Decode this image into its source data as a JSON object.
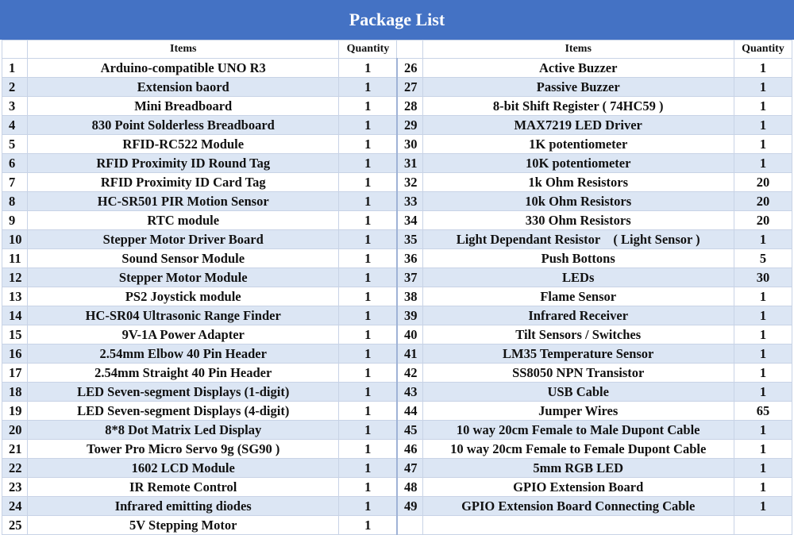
{
  "title": "Package List",
  "headers": {
    "items": "Items",
    "quantity": "Quantity"
  },
  "rows": [
    {
      "left": {
        "no": "1",
        "item": "Arduino-compatible UNO R3",
        "qty": "1"
      },
      "right": {
        "no": "26",
        "item": "Active Buzzer",
        "qty": "1"
      }
    },
    {
      "left": {
        "no": "2",
        "item": "Extension baord",
        "qty": "1"
      },
      "right": {
        "no": "27",
        "item": "Passive Buzzer",
        "qty": "1"
      }
    },
    {
      "left": {
        "no": "3",
        "item": "Mini Breadboard",
        "qty": "1"
      },
      "right": {
        "no": "28",
        "item": "8-bit Shift Register ( 74HC59 )",
        "qty": "1"
      }
    },
    {
      "left": {
        "no": "4",
        "item": "830 Point Solderless Breadboard",
        "qty": "1"
      },
      "right": {
        "no": "29",
        "item": "MAX7219 LED Driver",
        "qty": "1"
      }
    },
    {
      "left": {
        "no": "5",
        "item": "RFID-RC522 Module",
        "qty": "1"
      },
      "right": {
        "no": "30",
        "item": "1K potentiometer",
        "qty": "1"
      }
    },
    {
      "left": {
        "no": "6",
        "item": "RFID Proximity ID Round Tag",
        "qty": "1"
      },
      "right": {
        "no": "31",
        "item": "10K potentiometer",
        "qty": "1"
      }
    },
    {
      "left": {
        "no": "7",
        "item": "RFID Proximity ID Card Tag",
        "qty": "1"
      },
      "right": {
        "no": "32",
        "item": "1k Ohm Resistors",
        "qty": "20"
      }
    },
    {
      "left": {
        "no": "8",
        "item": "HC-SR501 PIR Motion Sensor",
        "qty": "1"
      },
      "right": {
        "no": "33",
        "item": "10k Ohm Resistors",
        "qty": "20"
      }
    },
    {
      "left": {
        "no": "9",
        "item": "RTC module",
        "qty": "1"
      },
      "right": {
        "no": "34",
        "item": "330 Ohm Resistors",
        "qty": "20"
      }
    },
    {
      "left": {
        "no": "10",
        "item": "Stepper Motor Driver Board",
        "qty": "1"
      },
      "right": {
        "no": "35",
        "item": "Light Dependant Resistor　( Light Sensor )",
        "qty": "1"
      }
    },
    {
      "left": {
        "no": "11",
        "item": "Sound Sensor Module",
        "qty": "1"
      },
      "right": {
        "no": "36",
        "item": "Push Bottons",
        "qty": "5"
      }
    },
    {
      "left": {
        "no": "12",
        "item": "Stepper Motor Module",
        "qty": "1"
      },
      "right": {
        "no": "37",
        "item": "LEDs",
        "qty": "30"
      }
    },
    {
      "left": {
        "no": "13",
        "item": "PS2 Joystick module",
        "qty": "1"
      },
      "right": {
        "no": "38",
        "item": "Flame Sensor",
        "qty": "1"
      }
    },
    {
      "left": {
        "no": "14",
        "item": "HC-SR04 Ultrasonic Range Finder",
        "qty": "1"
      },
      "right": {
        "no": "39",
        "item": "Infrared Receiver",
        "qty": "1"
      }
    },
    {
      "left": {
        "no": "15",
        "item": "9V-1A Power Adapter",
        "qty": "1"
      },
      "right": {
        "no": "40",
        "item": "Tilt Sensors / Switches",
        "qty": "1"
      }
    },
    {
      "left": {
        "no": "16",
        "item": "2.54mm Elbow 40 Pin Header",
        "qty": "1"
      },
      "right": {
        "no": "41",
        "item": "LM35 Temperature Sensor",
        "qty": "1"
      }
    },
    {
      "left": {
        "no": "17",
        "item": "2.54mm Straight 40 Pin Header",
        "qty": "1"
      },
      "right": {
        "no": "42",
        "item": "SS8050 NPN Transistor",
        "qty": "1"
      }
    },
    {
      "left": {
        "no": "18",
        "item": "LED Seven-segment Displays (1-digit)",
        "qty": "1"
      },
      "right": {
        "no": "43",
        "item": "USB Cable",
        "qty": "1"
      }
    },
    {
      "left": {
        "no": "19",
        "item": "LED Seven-segment Displays (4-digit)",
        "qty": "1"
      },
      "right": {
        "no": "44",
        "item": "Jumper Wires",
        "qty": "65"
      }
    },
    {
      "left": {
        "no": "20",
        "item": "8*8 Dot Matrix Led Display",
        "qty": "1"
      },
      "right": {
        "no": "45",
        "item": "10 way 20cm Female to Male Dupont Cable",
        "qty": "1"
      }
    },
    {
      "left": {
        "no": "21",
        "item": "Tower Pro Micro Servo 9g (SG90 )",
        "qty": "1"
      },
      "right": {
        "no": "46",
        "item": "10 way 20cm Female to Female Dupont Cable",
        "qty": "1"
      }
    },
    {
      "left": {
        "no": "22",
        "item": "1602 LCD Module",
        "qty": "1"
      },
      "right": {
        "no": "47",
        "item": "5mm RGB LED",
        "qty": "1"
      }
    },
    {
      "left": {
        "no": "23",
        "item": "IR Remote Control",
        "qty": "1"
      },
      "right": {
        "no": "48",
        "item": "GPIO Extension Board",
        "qty": "1"
      }
    },
    {
      "left": {
        "no": "24",
        "item": "Infrared emitting diodes",
        "qty": "1"
      },
      "right": {
        "no": "49",
        "item": "GPIO Extension Board Connecting Cable",
        "qty": "1"
      }
    },
    {
      "left": {
        "no": "25",
        "item": "5V Stepping Motor",
        "qty": "1"
      },
      "right": {
        "no": "",
        "item": "",
        "qty": ""
      }
    }
  ]
}
